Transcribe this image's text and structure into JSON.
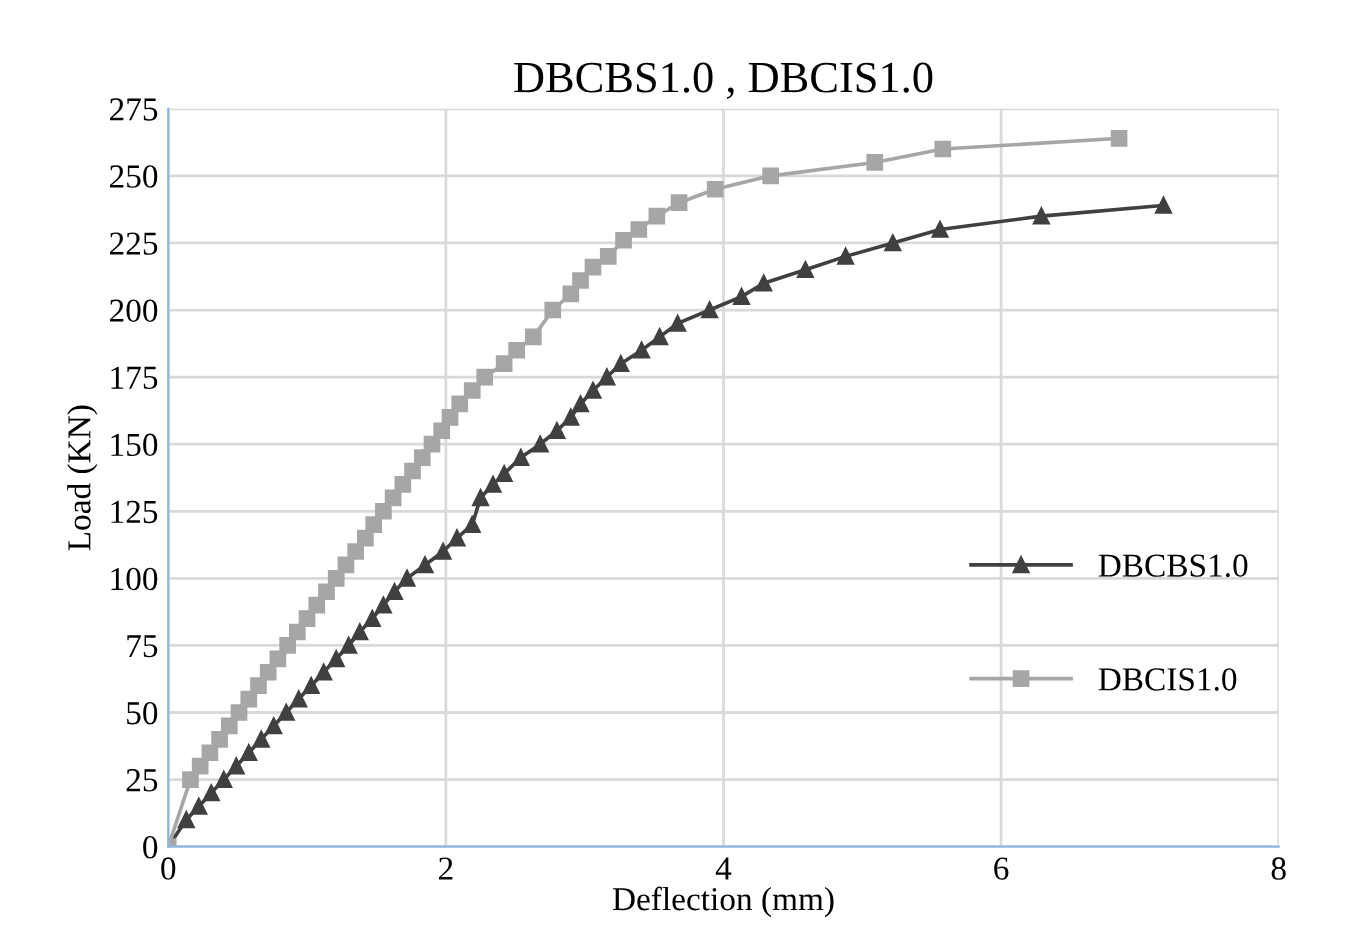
{
  "chart_data": {
    "type": "line",
    "title": "DBCBS1.0 , DBCIS1.0",
    "xlabel": "Deflection (mm)",
    "ylabel": "Load (KN)",
    "xlim": [
      0,
      8
    ],
    "xticks": [
      0,
      2,
      4,
      6,
      8
    ],
    "ylim": [
      0,
      275
    ],
    "yticks": [
      0,
      25,
      50,
      75,
      100,
      125,
      150,
      175,
      200,
      225,
      250,
      275
    ],
    "grid": true,
    "legend": "right",
    "series": [
      {
        "name": "DBCBS1.0",
        "color": "#404040",
        "marker": "triangle",
        "x": [
          0,
          0.13,
          0.22,
          0.31,
          0.4,
          0.49,
          0.58,
          0.67,
          0.76,
          0.85,
          0.94,
          1.03,
          1.12,
          1.21,
          1.3,
          1.38,
          1.47,
          1.55,
          1.63,
          1.72,
          1.85,
          1.98,
          2.08,
          2.19,
          2.25,
          2.34,
          2.42,
          2.54,
          2.68,
          2.8,
          2.9,
          2.97,
          3.06,
          3.16,
          3.26,
          3.41,
          3.54,
          3.67,
          3.9,
          4.13,
          4.29,
          4.59,
          4.88,
          5.22,
          5.56,
          6.29,
          7.17
        ],
        "values": [
          0,
          10,
          15,
          20,
          25,
          30,
          35,
          40,
          45,
          50,
          55,
          60,
          65,
          70,
          75,
          80,
          85,
          90,
          95,
          100,
          105,
          110,
          115,
          120,
          130,
          135,
          139,
          145,
          150,
          155,
          160,
          165,
          170,
          175,
          180,
          185,
          190,
          195,
          200,
          205,
          210,
          215,
          220,
          225,
          230,
          235,
          239
        ]
      },
      {
        "name": "DBCIS1.0",
        "color": "#a6a6a6",
        "marker": "square",
        "x": [
          0,
          0.16,
          0.23,
          0.3,
          0.37,
          0.44,
          0.51,
          0.58,
          0.65,
          0.72,
          0.79,
          0.86,
          0.93,
          1.0,
          1.07,
          1.14,
          1.21,
          1.28,
          1.35,
          1.42,
          1.48,
          1.55,
          1.62,
          1.69,
          1.76,
          1.83,
          1.9,
          1.97,
          2.03,
          2.1,
          2.19,
          2.28,
          2.42,
          2.51,
          2.63,
          2.77,
          2.9,
          2.97,
          3.06,
          3.17,
          3.28,
          3.39,
          3.52,
          3.68,
          3.94,
          4.34,
          5.09,
          5.58,
          6.85
        ],
        "values": [
          0,
          25,
          30,
          35,
          40,
          45,
          50,
          55,
          60,
          65,
          70,
          75,
          80,
          85,
          90,
          95,
          100,
          105,
          110,
          115,
          120,
          125,
          130,
          135,
          140,
          145,
          150,
          155,
          160,
          165,
          170,
          175,
          180,
          185,
          190,
          200,
          206,
          211,
          216,
          220,
          226,
          230,
          235,
          240,
          245,
          250,
          255,
          260,
          264
        ]
      }
    ]
  }
}
